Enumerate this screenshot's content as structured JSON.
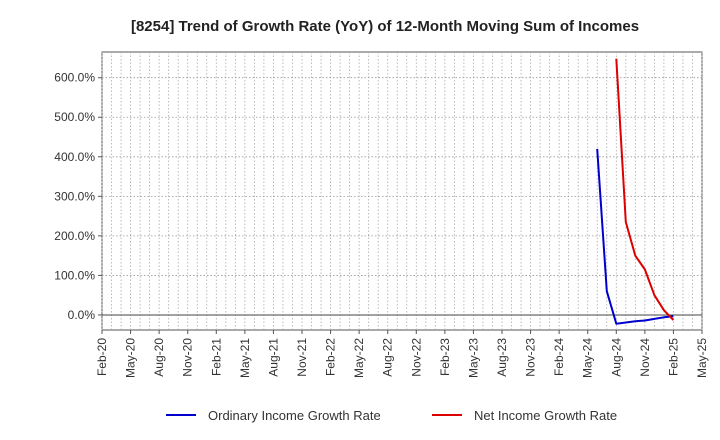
{
  "chart_data": {
    "type": "line",
    "title": "[8254]  Trend of Growth Rate (YoY) of 12-Month Moving Sum of Incomes",
    "xlabel": "",
    "ylabel": "",
    "x_ticks": [
      "Feb-20",
      "May-20",
      "Aug-20",
      "Nov-20",
      "Feb-21",
      "May-21",
      "Aug-21",
      "Nov-21",
      "Feb-22",
      "May-22",
      "Aug-22",
      "Nov-22",
      "Feb-23",
      "May-23",
      "Aug-23",
      "Nov-23",
      "Feb-24",
      "May-24",
      "Aug-24",
      "Nov-24",
      "Feb-25",
      "May-25"
    ],
    "x_range": [
      "2020-02",
      "2025-05"
    ],
    "y_ticks": [
      {
        "value": 0,
        "label": "0.0%"
      },
      {
        "value": 100,
        "label": "100.0%"
      },
      {
        "value": 200,
        "label": "200.0%"
      },
      {
        "value": 300,
        "label": "300.0%"
      },
      {
        "value": 400,
        "label": "400.0%"
      },
      {
        "value": 500,
        "label": "500.0%"
      },
      {
        "value": 600,
        "label": "600.0%"
      }
    ],
    "ylim": [
      -38,
      665
    ],
    "grid": true,
    "legend_position": "bottom",
    "series": [
      {
        "name": "Ordinary Income Growth Rate",
        "color": "#0000cc",
        "points": [
          {
            "x": "2024-06",
            "y": 420
          },
          {
            "x": "2024-07",
            "y": 60
          },
          {
            "x": "2024-08",
            "y": -22
          },
          {
            "x": "2024-09",
            "y": -19
          },
          {
            "x": "2024-10",
            "y": -16
          },
          {
            "x": "2024-11",
            "y": -14
          },
          {
            "x": "2024-12",
            "y": -10
          },
          {
            "x": "2025-01",
            "y": -6
          },
          {
            "x": "2025-02",
            "y": -3
          }
        ]
      },
      {
        "name": "Net Income Growth Rate",
        "color": "#dd0000",
        "points": [
          {
            "x": "2024-08",
            "y": 648
          },
          {
            "x": "2024-09",
            "y": 235
          },
          {
            "x": "2024-10",
            "y": 150
          },
          {
            "x": "2024-11",
            "y": 115
          },
          {
            "x": "2024-12",
            "y": 50
          },
          {
            "x": "2025-01",
            "y": 12
          },
          {
            "x": "2025-02",
            "y": -13
          }
        ]
      }
    ]
  }
}
